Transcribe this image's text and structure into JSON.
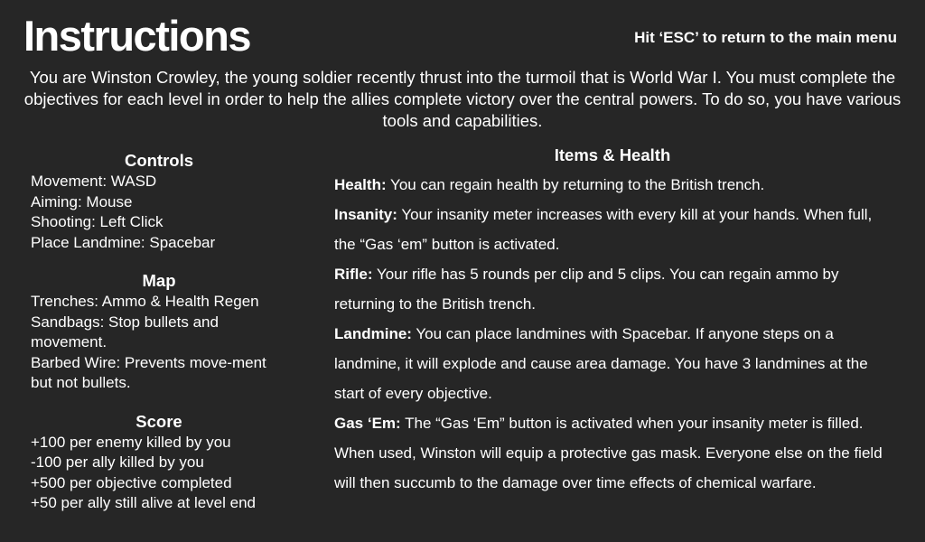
{
  "header": {
    "title": "Instructions",
    "esc_hint": "Hit ‘ESC’ to return to the main menu"
  },
  "intro": "You are Winston Crowley, the young soldier recently thrust into the turmoil that is World War I. You must complete the objectives for each level in order to help the allies complete victory over the central powers. To do so, you have various tools and capabilities.",
  "controls": {
    "heading": "Controls",
    "lines": [
      "Movement: WASD",
      "Aiming: Mouse",
      "Shooting: Left Click",
      "Place Landmine: Spacebar"
    ]
  },
  "map": {
    "heading": "Map",
    "lines": [
      "Trenches: Ammo & Health Regen",
      "Sandbags: Stop bullets and movement.",
      "Barbed Wire: Prevents move-ment but not bullets."
    ]
  },
  "score": {
    "heading": "Score",
    "lines": [
      "+100 per enemy killed by you",
      "-100 per ally killed by you",
      "+500 per objective completed",
      "+50 per ally still alive at level end"
    ]
  },
  "items_health": {
    "heading": "Items & Health",
    "items": [
      {
        "name": "Health:",
        "text": " You can regain health by returning to the British trench."
      },
      {
        "name": "Insanity:",
        "text": " Your insanity meter increases with every kill at your hands. When full, the “Gas ‘em” button is activated."
      },
      {
        "name": "Rifle:",
        "text": " Your rifle has 5 rounds per clip and 5 clips. You can regain ammo by returning to the British trench."
      },
      {
        "name": "Landmine:",
        "text": " You can place landmines with Spacebar. If anyone steps on a landmine, it will explode and cause area damage. You have 3 landmines at the start of every objective."
      },
      {
        "name": "Gas ‘Em:",
        "text": " The “Gas ‘Em” button is activated when your insanity meter is filled. When used, Winston will equip a protective gas mask. Everyone else on the field will then succumb to the damage over time effects of chemical warfare."
      }
    ]
  }
}
